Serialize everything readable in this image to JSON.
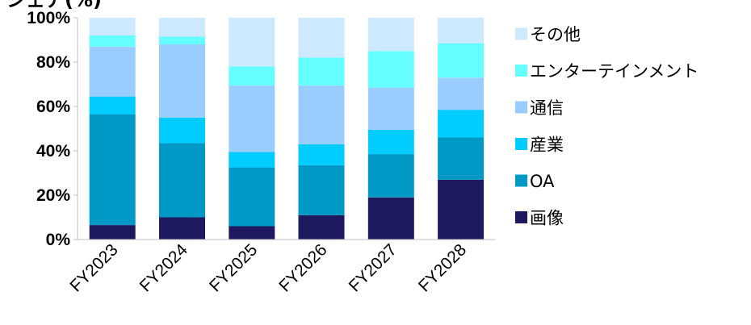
{
  "chart_data": {
    "type": "bar",
    "stacked": true,
    "categories": [
      "FY2023",
      "FY2024",
      "FY2025",
      "FY2026",
      "FY2027",
      "FY2028"
    ],
    "series": [
      {
        "name": "画像",
        "color": "#1f1a60",
        "values": [
          6.5,
          10,
          6,
          11,
          19,
          27
        ]
      },
      {
        "name": "OA",
        "color": "#0099c6",
        "values": [
          50,
          33.5,
          26.5,
          22.5,
          19.5,
          19
        ]
      },
      {
        "name": "産業",
        "color": "#00ccff",
        "values": [
          8,
          11.5,
          7,
          9.5,
          11,
          12.5
        ]
      },
      {
        "name": "通信",
        "color": "#99ccff",
        "values": [
          22.5,
          33,
          30,
          26.5,
          19,
          14.5
        ]
      },
      {
        "name": "エンターテインメント",
        "color": "#66ffff",
        "values": [
          5,
          3.5,
          8.5,
          12.5,
          16.5,
          15.5
        ]
      },
      {
        "name": "その他",
        "color": "#cce9ff",
        "values": [
          8,
          8.5,
          22,
          18,
          15,
          11.5
        ]
      }
    ],
    "yticks": [
      "0%",
      "20%",
      "40%",
      "60%",
      "80%",
      "100%"
    ],
    "ylim": [
      0,
      100
    ],
    "grid": false,
    "legend_position": "right",
    "title_fragment": "シェア(%)"
  }
}
